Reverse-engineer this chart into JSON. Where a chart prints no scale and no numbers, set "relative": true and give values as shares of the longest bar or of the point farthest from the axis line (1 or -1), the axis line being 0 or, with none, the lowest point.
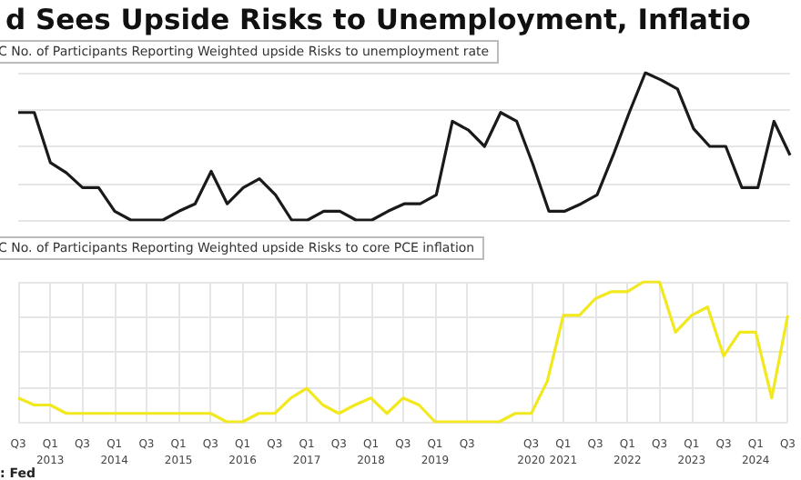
{
  "chart_data": [
    {
      "type": "line",
      "title": "d Sees Upside Risks to Unemployment, Inflatio",
      "subtitle": "C No. of Participants Reporting Weighted upside Risks to unemployment rate",
      "relative": true,
      "tick_labels": false,
      "grid": true,
      "marker": "none",
      "line_style": "solid",
      "categories": [
        null,
        null,
        null,
        null,
        null,
        null,
        null,
        null,
        null,
        null,
        null,
        null,
        null,
        null,
        null,
        null,
        null,
        null,
        null,
        null,
        null,
        null,
        null,
        null,
        null,
        null,
        null,
        null,
        null,
        null,
        null,
        null,
        null,
        null,
        null,
        null,
        null,
        null,
        null,
        null,
        null,
        null,
        null,
        null,
        null,
        null,
        null,
        null,
        null
      ],
      "series": [
        {
          "color": "#1a1a1a",
          "values": [
            0.73,
            0.73,
            0.39,
            0.32,
            0.22,
            0.22,
            0.06,
            0,
            0,
            0,
            0.06,
            0.11,
            0.33,
            0.11,
            0.22,
            0.28,
            0.17,
            0,
            0,
            0.06,
            0.06,
            0,
            0,
            0.06,
            0.11,
            0.11,
            0.17,
            0.67,
            0.61,
            0.5,
            0.73,
            0.67,
            0.38,
            0.06,
            0.06,
            0.11,
            0.17,
            0.44,
            0.73,
            1,
            0.95,
            0.89,
            0.62,
            0.5,
            0.5,
            0.22,
            0.22,
            0.67,
            0.44
          ]
        }
      ]
    },
    {
      "type": "line",
      "title": "C No. of Participants Reporting Weighted upside Risks to core PCE inflation",
      "relative": true,
      "tick_labels": "x",
      "grid": true,
      "marker": "none",
      "line_style": "solid",
      "annotations": [
        ": Fed"
      ],
      "categories": [
        "Q3",
        null,
        "Q1\n2013",
        null,
        "Q3",
        null,
        "Q1\n2014",
        null,
        "Q3",
        null,
        "Q1\n2015",
        null,
        "Q3",
        null,
        "Q1\n2016",
        null,
        "Q3",
        null,
        "Q1\n2017",
        null,
        "Q3",
        null,
        "Q1\n2018",
        null,
        "Q3",
        null,
        "Q1\n2019",
        null,
        "Q3",
        null,
        null,
        null,
        "Q3\n2020",
        null,
        "Q1\n2021",
        null,
        "Q3",
        null,
        "Q1\n2022",
        null,
        "Q3",
        null,
        "Q1\n2023",
        null,
        "Q3",
        null,
        "Q1\n2024",
        null,
        "Q3"
      ],
      "series": [
        {
          "color": "#f2e81e",
          "values": [
            0.17,
            0.12,
            0.12,
            0.06,
            0.06,
            0.06,
            0.06,
            0.06,
            0.06,
            0.06,
            0.06,
            0.06,
            0.06,
            0,
            0,
            0.06,
            0.06,
            0.17,
            0.24,
            0.12,
            0.06,
            0.12,
            0.17,
            0.06,
            0.17,
            0.12,
            0,
            0,
            0,
            0,
            0,
            0.06,
            0.06,
            0.29,
            0.76,
            0.76,
            0.88,
            0.93,
            0.93,
            1,
            1,
            0.64,
            0.76,
            0.82,
            0.47,
            0.64,
            0.64,
            0.17,
            0.76
          ]
        }
      ]
    }
  ]
}
